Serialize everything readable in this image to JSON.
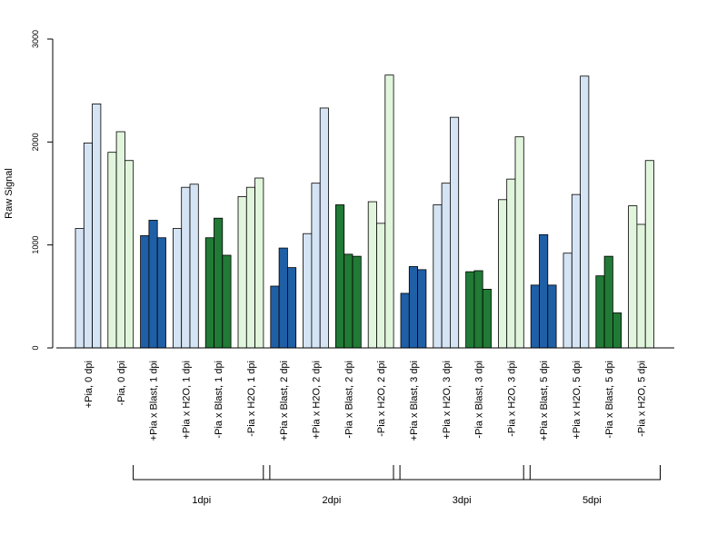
{
  "chart_data": {
    "type": "bar",
    "ylabel": "Raw Signal",
    "xlabel": "",
    "title": "",
    "ylim": [
      0,
      3000
    ],
    "yticks": [
      0,
      1000,
      2000,
      3000
    ],
    "grid": false,
    "colors": {
      "blast_plus": "#1f5fa6",
      "h2o_plus": "#d5e4f4",
      "blast_minus": "#217a35",
      "h2o_minus": "#e1f5dc"
    },
    "categories": [
      {
        "label": "+Pia, 0 dpi",
        "values": [
          1160,
          1990,
          2370
        ],
        "color": "h2o_plus"
      },
      {
        "label": "-Pia, 0 dpi",
        "values": [
          1900,
          2100,
          1820
        ],
        "color": "h2o_minus"
      },
      {
        "label": "+Pia x Blast, 1 dpi",
        "values": [
          1090,
          1240,
          1070
        ],
        "color": "blast_plus"
      },
      {
        "label": "+Pia x H2O, 1 dpi",
        "values": [
          1160,
          1560,
          1590
        ],
        "color": "h2o_plus"
      },
      {
        "label": "-Pia x Blast, 1 dpi",
        "values": [
          1070,
          1260,
          900
        ],
        "color": "blast_minus"
      },
      {
        "label": "-Pia x H2O, 1 dpi",
        "values": [
          1470,
          1560,
          1650
        ],
        "color": "h2o_minus"
      },
      {
        "label": "+Pia x Blast, 2 dpi",
        "values": [
          600,
          970,
          780
        ],
        "color": "blast_plus"
      },
      {
        "label": "+Pia x H2O, 2 dpi",
        "values": [
          1110,
          1600,
          2330
        ],
        "color": "h2o_plus"
      },
      {
        "label": "-Pia x Blast, 2 dpi",
        "values": [
          1390,
          910,
          890
        ],
        "color": "blast_minus"
      },
      {
        "label": "-Pia x H2O, 2 dpi",
        "values": [
          1420,
          1210,
          2650
        ],
        "color": "h2o_minus"
      },
      {
        "label": "+Pia x Blast, 3 dpi",
        "values": [
          530,
          790,
          760
        ],
        "color": "blast_plus"
      },
      {
        "label": "+Pia x H2O, 3 dpi",
        "values": [
          1390,
          1600,
          2240
        ],
        "color": "h2o_plus"
      },
      {
        "label": "-Pia x Blast, 3 dpi",
        "values": [
          740,
          750,
          570
        ],
        "color": "blast_minus"
      },
      {
        "label": "-Pia x H2O, 3 dpi",
        "values": [
          1440,
          1640,
          2050
        ],
        "color": "h2o_minus"
      },
      {
        "label": "+Pia x Blast, 5 dpi",
        "values": [
          610,
          1100,
          610
        ],
        "color": "blast_plus"
      },
      {
        "label": "+Pia x H2O, 5 dpi",
        "values": [
          920,
          1490,
          2640
        ],
        "color": "h2o_plus"
      },
      {
        "label": "-Pia x Blast, 5 dpi",
        "values": [
          700,
          890,
          340
        ],
        "color": "blast_minus"
      },
      {
        "label": "-Pia x H2O, 5 dpi",
        "values": [
          1380,
          1200,
          1820
        ],
        "color": "h2o_minus"
      }
    ],
    "groups": [
      {
        "label": "1dpi",
        "from": 2,
        "to": 5
      },
      {
        "label": "2dpi",
        "from": 6,
        "to": 9
      },
      {
        "label": "3dpi",
        "from": 10,
        "to": 13
      },
      {
        "label": "5dpi",
        "from": 14,
        "to": 17
      }
    ]
  }
}
